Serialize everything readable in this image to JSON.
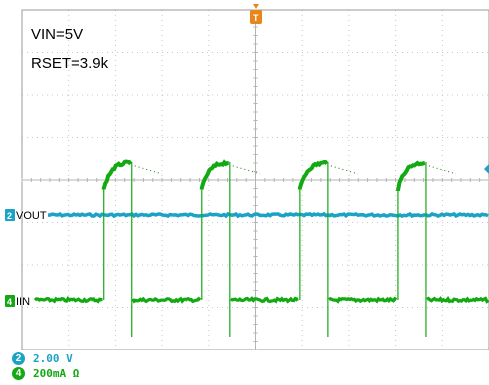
{
  "colors": {
    "background": "#ffffff",
    "grid": "#c8c8c8",
    "ch2": "#1ba3c6",
    "ch4": "#13a913",
    "ch4_dark": "#0b7a0b",
    "trigger": "#e8861c"
  },
  "annotations": {
    "vin": "VIN=5V",
    "rset": "RSET=3.9k"
  },
  "traces": {
    "ch2_label": "VOUT",
    "ch4_label": "IIN"
  },
  "markers": {
    "trigger_letter": "T",
    "ch2_number": "2",
    "ch4_number": "4"
  },
  "legend": {
    "ch2": {
      "number": "2",
      "scale": "2.00 V"
    },
    "ch4": {
      "number": "4",
      "scale": "200mA Ω"
    }
  },
  "chart_data": {
    "type": "line",
    "grid": true,
    "series": [
      {
        "name": "VOUT",
        "channel": "2",
        "y_divisions": 0.0
      },
      {
        "name": "IIN",
        "channel": "4",
        "pulse_high_divisions": 2.6,
        "pulse_settled_high_divisions": 3.25,
        "pulse_rise_at_divisions": [
          1.75,
          3.85,
          5.95,
          8.05
        ],
        "pulse_fall_at_divisions": [
          2.35,
          4.45,
          6.55,
          8.65
        ]
      }
    ]
  }
}
